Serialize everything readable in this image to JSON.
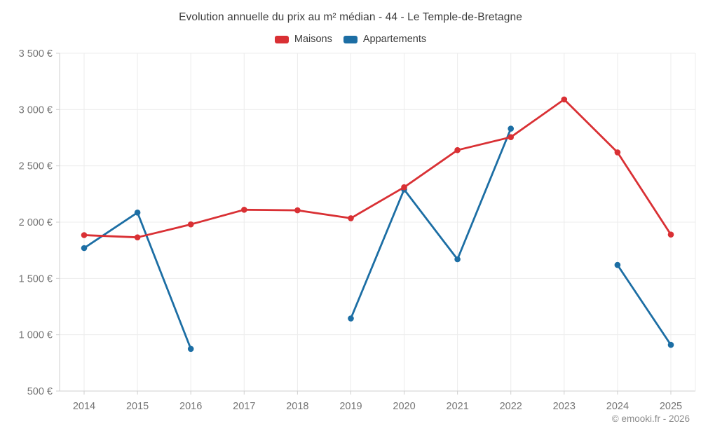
{
  "header": {
    "title": "Evolution annuelle du prix au m² médian - 44 - Le Temple-de-Bretagne"
  },
  "footer": {
    "copyright": "© emooki.fr - 2026"
  },
  "colors": {
    "maisons_red": "#d93034",
    "appartements_blue": "#1c6ea4",
    "grid": "#ececec",
    "axis": "#cfcfcf",
    "tick_label": "#757575",
    "title_text": "#3d3d3d",
    "copyright_text": "#8c8c8c"
  },
  "chart_data": {
    "type": "line",
    "title": "Evolution annuelle du prix au m² médian - 44 - Le Temple-de-Bretagne",
    "categories": [
      "2014",
      "2015",
      "2016",
      "2017",
      "2018",
      "2019",
      "2020",
      "2021",
      "2022",
      "2023",
      "2024",
      "2025"
    ],
    "series": [
      {
        "name": "Maisons",
        "color": "#d93034",
        "values": [
          1885,
          1865,
          1980,
          2110,
          2105,
          2035,
          2310,
          2640,
          2755,
          3090,
          2620,
          1890
        ]
      },
      {
        "name": "Appartements",
        "color": "#1c6ea4",
        "values": [
          1770,
          2085,
          875,
          null,
          null,
          1145,
          2290,
          1670,
          2830,
          null,
          1620,
          910
        ]
      }
    ],
    "ylabel": "",
    "xlabel": "",
    "ylim": [
      500,
      3500
    ],
    "yticks": [
      {
        "value": 500,
        "label": "500 €"
      },
      {
        "value": 1000,
        "label": "1 000 €"
      },
      {
        "value": 1500,
        "label": "1 500 €"
      },
      {
        "value": 2000,
        "label": "2 000 €"
      },
      {
        "value": 2500,
        "label": "2 500 €"
      },
      {
        "value": 3000,
        "label": "3 000 €"
      },
      {
        "value": 3500,
        "label": "3 500 €"
      }
    ],
    "grid": true,
    "legend_position": "top-center",
    "marker": "circle",
    "gaps_note": "null values = missing data points (no line segment drawn)"
  }
}
